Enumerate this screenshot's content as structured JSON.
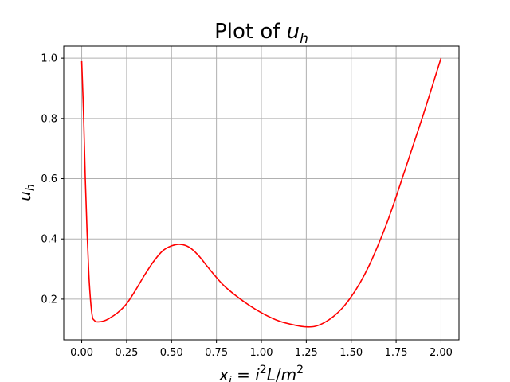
{
  "chart_data": {
    "type": "line",
    "title": "Plot of u_h",
    "xlabel": "x_i = i^2 L/m^2",
    "ylabel": "u_h",
    "xlim": [
      -0.1,
      2.1
    ],
    "ylim": [
      0.065,
      1.04
    ],
    "xticks": [
      "0.00",
      "0.25",
      "0.50",
      "0.75",
      "1.00",
      "1.25",
      "1.50",
      "1.75",
      "2.00"
    ],
    "yticks": [
      "0.2",
      "0.4",
      "0.6",
      "0.8",
      "1.0"
    ],
    "grid": true,
    "series": [
      {
        "color": "#ff0000",
        "x": [
          0.0,
          0.01,
          0.02,
          0.03,
          0.04,
          0.05,
          0.06,
          0.07,
          0.08,
          0.1,
          0.12,
          0.15,
          0.2,
          0.25,
          0.3,
          0.35,
          0.4,
          0.45,
          0.5,
          0.55,
          0.6,
          0.65,
          0.7,
          0.75,
          0.8,
          0.9,
          1.0,
          1.1,
          1.2,
          1.25,
          1.3,
          1.35,
          1.4,
          1.45,
          1.5,
          1.55,
          1.6,
          1.65,
          1.7,
          1.75,
          1.8,
          1.85,
          1.9,
          1.95,
          2.0
        ],
        "y": [
          0.99,
          0.82,
          0.6,
          0.42,
          0.28,
          0.19,
          0.14,
          0.13,
          0.125,
          0.125,
          0.127,
          0.135,
          0.155,
          0.185,
          0.23,
          0.28,
          0.325,
          0.36,
          0.377,
          0.382,
          0.372,
          0.345,
          0.308,
          0.272,
          0.24,
          0.193,
          0.155,
          0.127,
          0.112,
          0.108,
          0.11,
          0.122,
          0.142,
          0.17,
          0.208,
          0.255,
          0.312,
          0.38,
          0.455,
          0.54,
          0.63,
          0.72,
          0.81,
          0.905,
          1.0
        ]
      }
    ]
  }
}
